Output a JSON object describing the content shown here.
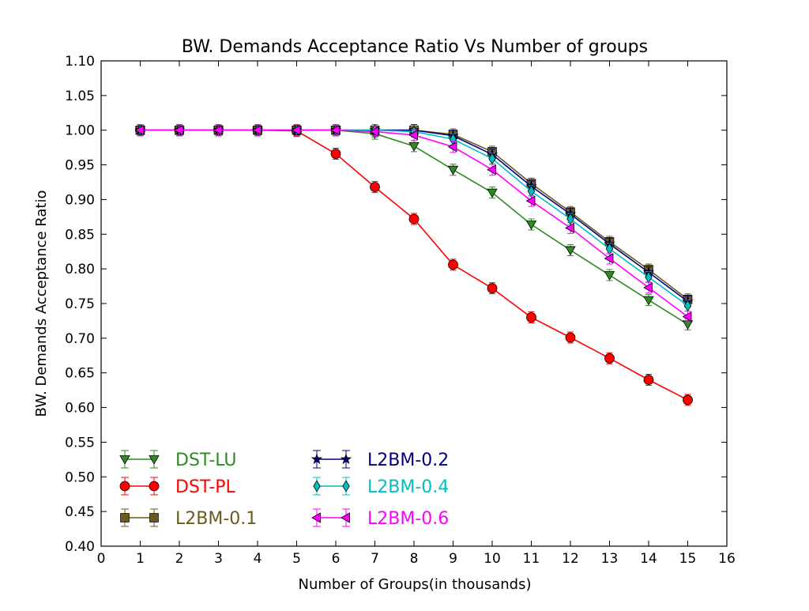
{
  "chart_data": {
    "type": "line",
    "title": "BW. Demands Acceptance Ratio Vs Number of groups",
    "xlabel": "Number of Groups(in thousands)",
    "ylabel": "BW. Demands Acceptance Ratio",
    "xlim": [
      0,
      16
    ],
    "ylim": [
      0.4,
      1.1
    ],
    "x_ticks": [
      "0",
      "1",
      "2",
      "3",
      "4",
      "5",
      "6",
      "7",
      "8",
      "9",
      "10",
      "11",
      "12",
      "13",
      "14",
      "15",
      "16"
    ],
    "y_ticks": [
      "0.40",
      "0.45",
      "0.50",
      "0.55",
      "0.60",
      "0.65",
      "0.70",
      "0.75",
      "0.80",
      "0.85",
      "0.90",
      "0.95",
      "1.00",
      "1.05",
      "1.10"
    ],
    "grid": false,
    "legend_position": "lower-left",
    "x": [
      1,
      2,
      3,
      4,
      5,
      6,
      7,
      8,
      9,
      10,
      11,
      12,
      13,
      14,
      15
    ],
    "series": [
      {
        "name": "DST-LU",
        "color": "#2e8b22",
        "marker": "triangle-down",
        "values": [
          1.0,
          1.0,
          1.0,
          1.0,
          1.0,
          1.0,
          0.995,
          0.977,
          0.943,
          0.91,
          0.864,
          0.827,
          0.791,
          0.755,
          0.72
        ]
      },
      {
        "name": "DST-PL",
        "color": "#ff0000",
        "marker": "circle",
        "values": [
          1.0,
          1.0,
          1.0,
          1.0,
          0.999,
          0.966,
          0.918,
          0.872,
          0.806,
          0.772,
          0.73,
          0.701,
          0.671,
          0.64,
          0.611
        ]
      },
      {
        "name": "L2BM-0.1",
        "color": "#6b5a1e",
        "marker": "square",
        "values": [
          1.0,
          1.0,
          1.0,
          1.0,
          1.0,
          1.0,
          1.0,
          1.0,
          0.994,
          0.969,
          0.923,
          0.882,
          0.839,
          0.799,
          0.756
        ]
      },
      {
        "name": "L2BM-0.2",
        "color": "#000080",
        "marker": "star",
        "values": [
          1.0,
          1.0,
          1.0,
          1.0,
          1.0,
          1.0,
          1.0,
          1.0,
          0.992,
          0.965,
          0.919,
          0.879,
          0.836,
          0.795,
          0.753
        ]
      },
      {
        "name": "L2BM-0.4",
        "color": "#00bfbf",
        "marker": "diamond",
        "values": [
          1.0,
          1.0,
          1.0,
          1.0,
          1.0,
          1.0,
          1.0,
          0.998,
          0.987,
          0.959,
          0.912,
          0.872,
          0.829,
          0.788,
          0.747
        ]
      },
      {
        "name": "L2BM-0.6",
        "color": "#ff00ff",
        "marker": "triangle-left",
        "values": [
          1.0,
          1.0,
          1.0,
          1.0,
          1.0,
          1.0,
          0.998,
          0.993,
          0.976,
          0.943,
          0.898,
          0.859,
          0.815,
          0.773,
          0.731
        ]
      }
    ]
  }
}
